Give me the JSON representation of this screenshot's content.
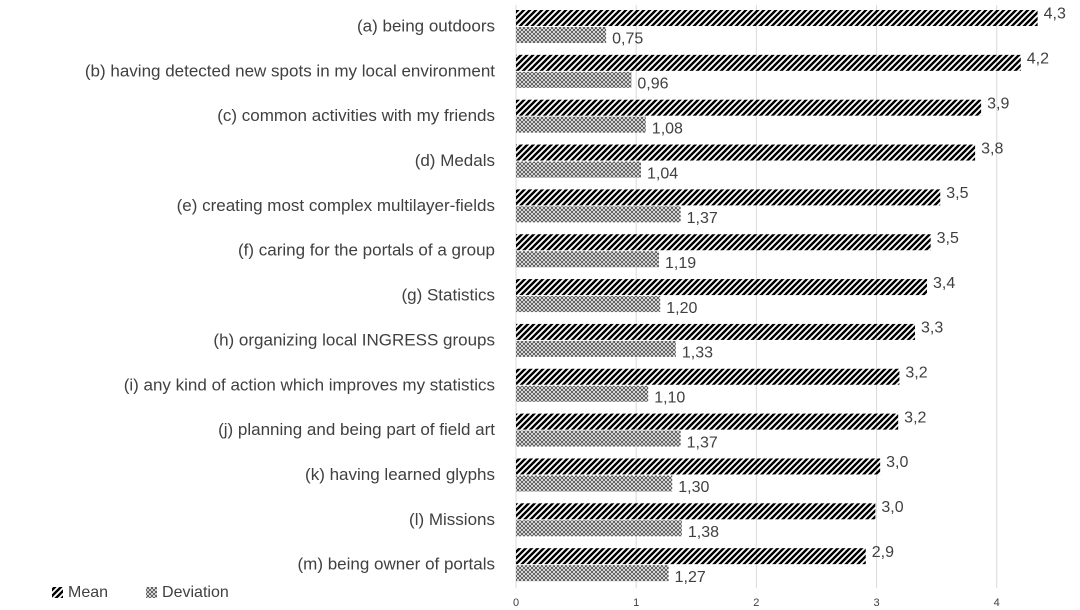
{
  "chart_data": {
    "type": "bar",
    "orientation": "horizontal",
    "categories": [
      "(a) being outdoors",
      "(b) having detected new spots in my local environment",
      "(c) common activities with my friends",
      "(d) Medals",
      "(e) creating most complex multilayer-fields",
      "(f) caring for the portals of a group",
      "(g) Statistics",
      "(h) organizing local INGRESS groups",
      "(i) any kind of action which improves my statistics",
      "(j) planning and being part of field art",
      "(k) having learned glyphs",
      "(l) Missions",
      "(m) being owner of portals"
    ],
    "series": [
      {
        "name": "Mean",
        "color": "#000000",
        "values": [
          4.34,
          4.2,
          3.87,
          3.82,
          3.53,
          3.45,
          3.42,
          3.32,
          3.19,
          3.18,
          3.03,
          2.99,
          2.91
        ],
        "value_labels": [
          "4,3",
          "4,2",
          "3,9",
          "3,8",
          "3,5",
          "3,5",
          "3,4",
          "3,3",
          "3,2",
          "3,2",
          "3,0",
          "3,0",
          "2,9"
        ]
      },
      {
        "name": "Deviation",
        "color": "#595959",
        "values": [
          0.75,
          0.96,
          1.08,
          1.04,
          1.37,
          1.19,
          1.2,
          1.33,
          1.1,
          1.37,
          1.3,
          1.38,
          1.27
        ],
        "value_labels": [
          "0,75",
          "0,96",
          "1,08",
          "1,04",
          "1,37",
          "1,19",
          "1,20",
          "1,33",
          "1,10",
          "1,37",
          "1,30",
          "1,38",
          "1,27"
        ]
      }
    ],
    "xlim": [
      0,
      4.36
    ],
    "xticks": [
      0,
      1,
      2,
      3,
      4
    ],
    "grid": true,
    "legend": "bottom-left"
  }
}
